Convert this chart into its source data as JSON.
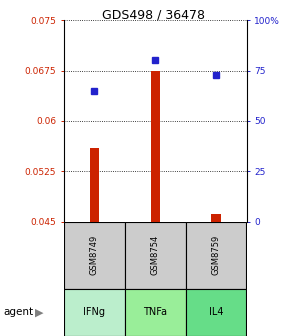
{
  "title": "GDS498 / 36478",
  "samples": [
    "GSM8749",
    "GSM8754",
    "GSM8759"
  ],
  "agents": [
    "IFNg",
    "TNFa",
    "IL4"
  ],
  "log_ratio": [
    0.056,
    0.0675,
    0.0462
  ],
  "log_ratio_baseline": 0.045,
  "percentile_rank": [
    65,
    80,
    73
  ],
  "ylim_left": [
    0.045,
    0.075
  ],
  "ylim_right": [
    0,
    100
  ],
  "yticks_left": [
    0.045,
    0.0525,
    0.06,
    0.0675,
    0.075
  ],
  "yticks_right": [
    0,
    25,
    50,
    75,
    100
  ],
  "ytick_labels_left": [
    "0.045",
    "0.0525",
    "0.06",
    "0.0675",
    "0.075"
  ],
  "ytick_labels_right": [
    "0",
    "25",
    "50",
    "75",
    "100%"
  ],
  "bar_color": "#cc2200",
  "square_color": "#2222cc",
  "agent_color": "#aaeebb",
  "sample_box_color": "#cccccc",
  "agent_color_ifng": "#bbeecc",
  "agent_color_tnfa": "#99ee99",
  "agent_color_il4": "#66dd88"
}
